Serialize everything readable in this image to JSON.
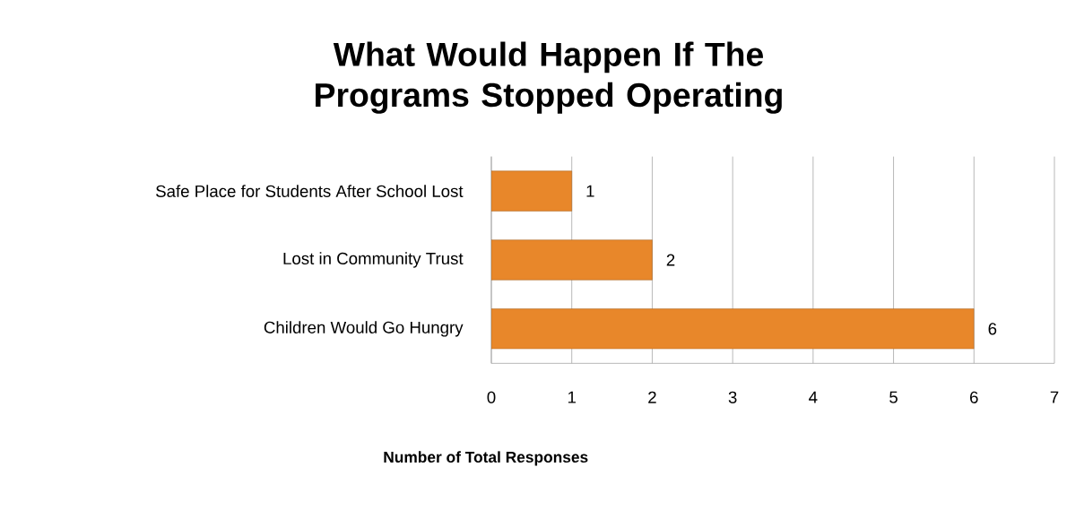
{
  "chart_data": {
    "type": "bar",
    "orientation": "horizontal",
    "title": "What Would Happen If The Programs Stopped Operating",
    "categories": [
      "Safe Place for Students After School Lost",
      "Lost in Community Trust",
      "Children Would Go Hungry"
    ],
    "values": [
      1,
      2,
      6
    ],
    "color": "#e8872a",
    "xlabel": "Number of Total Responses",
    "xlim": [
      0,
      7
    ],
    "xticks": [
      0,
      1,
      2,
      3,
      4,
      5,
      6,
      7
    ],
    "grid": "x",
    "data_labels": true
  }
}
